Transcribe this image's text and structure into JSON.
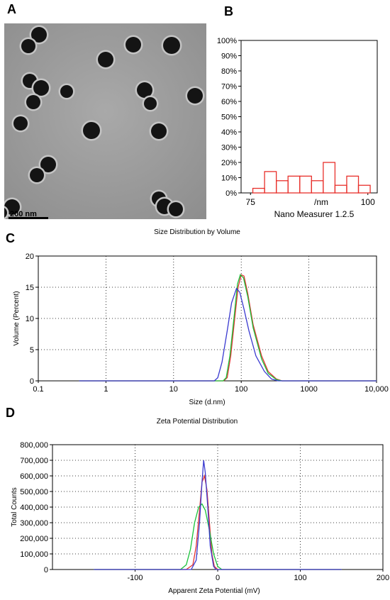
{
  "panel_labels": {
    "a": "A",
    "b": "B",
    "c": "C",
    "d": "D"
  },
  "tem": {
    "scale_label": "200 nm"
  },
  "colors": {
    "histogram": "#e8302b",
    "red": "#e23232",
    "green": "#19c23a",
    "blue": "#3a3ad0",
    "grid": "#000000"
  },
  "chart_data": [
    {
      "type": "bar",
      "panel": "B",
      "title": "",
      "xlabel": "/nm",
      "caption": "Nano Measurer 1.2.5",
      "ylabel": "",
      "xlim": [
        73,
        102
      ],
      "ylim": [
        0,
        100
      ],
      "x_ticks": [
        "75",
        "100"
      ],
      "y_ticks": [
        "0%",
        "10%",
        "20%",
        "30%",
        "40%",
        "50%",
        "60%",
        "70%",
        "80%",
        "90%",
        "100%"
      ],
      "bin_edges": [
        75.5,
        78,
        80.5,
        83,
        85.5,
        88,
        90.5,
        93,
        95.5,
        98,
        100.5
      ],
      "values": [
        3,
        14,
        8,
        11,
        11,
        8,
        20,
        5,
        11,
        5
      ]
    },
    {
      "type": "line",
      "panel": "C",
      "title": "Size Distribution by Volume",
      "xlabel": "Size (d.nm)",
      "ylabel": "Volume (Percent)",
      "xscale": "log",
      "xlim": [
        0.1,
        10000
      ],
      "ylim": [
        0,
        20
      ],
      "x_ticks": [
        "0.1",
        "1",
        "10",
        "100",
        "1000",
        "10,000"
      ],
      "y_ticks": [
        "0",
        "5",
        "10",
        "15",
        "20"
      ],
      "grid": true,
      "series": [
        {
          "color": "red",
          "points": [
            [
              0.4,
              0
            ],
            [
              55,
              0
            ],
            [
              62,
              0.5
            ],
            [
              70,
              4
            ],
            [
              80,
              10
            ],
            [
              90,
              15
            ],
            [
              100,
              17
            ],
            [
              110,
              16.8
            ],
            [
              125,
              14
            ],
            [
              150,
              9
            ],
            [
              200,
              4
            ],
            [
              250,
              1.5
            ],
            [
              330,
              0.3
            ],
            [
              400,
              0
            ],
            [
              10000,
              0
            ]
          ]
        },
        {
          "color": "green",
          "points": [
            [
              0.4,
              0
            ],
            [
              54,
              0
            ],
            [
              60,
              0.5
            ],
            [
              68,
              4
            ],
            [
              78,
              10
            ],
            [
              88,
              15.5
            ],
            [
              97,
              17
            ],
            [
              108,
              16.5
            ],
            [
              125,
              13.5
            ],
            [
              150,
              8.5
            ],
            [
              200,
              3.5
            ],
            [
              250,
              1.2
            ],
            [
              330,
              0.2
            ],
            [
              400,
              0
            ],
            [
              10000,
              0
            ]
          ]
        },
        {
          "color": "blue",
          "points": [
            [
              0.4,
              0
            ],
            [
              40,
              0
            ],
            [
              45,
              0.5
            ],
            [
              52,
              3
            ],
            [
              62,
              8
            ],
            [
              72,
              12.5
            ],
            [
              85,
              14.8
            ],
            [
              95,
              14.2
            ],
            [
              110,
              11.5
            ],
            [
              130,
              8
            ],
            [
              165,
              4
            ],
            [
              220,
              1.5
            ],
            [
              280,
              0.3
            ],
            [
              350,
              0
            ],
            [
              10000,
              0
            ]
          ]
        }
      ]
    },
    {
      "type": "line",
      "panel": "D",
      "title": "Zeta Potential Distribution",
      "xlabel": "Apparent Zeta Potential (mV)",
      "ylabel": "Total Counts",
      "xlim": [
        -200,
        200
      ],
      "ylim": [
        0,
        800000
      ],
      "x_ticks": [
        "-100",
        "0",
        "100",
        "200"
      ],
      "y_ticks": [
        "0",
        "100,000",
        "200,000",
        "300,000",
        "400,000",
        "500,000",
        "600,000",
        "700,000",
        "800,000"
      ],
      "grid": true,
      "series": [
        {
          "color": "red",
          "points": [
            [
              -150,
              0
            ],
            [
              -38,
              0
            ],
            [
              -30,
              30000
            ],
            [
              -26,
              150000
            ],
            [
              -22,
              380000
            ],
            [
              -19,
              560000
            ],
            [
              -16,
              600000
            ],
            [
              -13,
              510000
            ],
            [
              -10,
              300000
            ],
            [
              -7,
              100000
            ],
            [
              -4,
              20000
            ],
            [
              0,
              0
            ],
            [
              150,
              0
            ]
          ]
        },
        {
          "color": "green",
          "points": [
            [
              -150,
              0
            ],
            [
              -45,
              0
            ],
            [
              -38,
              30000
            ],
            [
              -33,
              130000
            ],
            [
              -28,
              300000
            ],
            [
              -23,
              400000
            ],
            [
              -19,
              420000
            ],
            [
              -15,
              380000
            ],
            [
              -10,
              250000
            ],
            [
              -5,
              100000
            ],
            [
              0,
              20000
            ],
            [
              5,
              0
            ],
            [
              150,
              0
            ]
          ]
        },
        {
          "color": "blue",
          "points": [
            [
              -150,
              0
            ],
            [
              -32,
              0
            ],
            [
              -26,
              60000
            ],
            [
              -22,
              300000
            ],
            [
              -19,
              560000
            ],
            [
              -17,
              700000
            ],
            [
              -15,
              620000
            ],
            [
              -12,
              400000
            ],
            [
              -9,
              150000
            ],
            [
              -5,
              20000
            ],
            [
              -2,
              0
            ],
            [
              150,
              0
            ]
          ]
        }
      ]
    }
  ]
}
